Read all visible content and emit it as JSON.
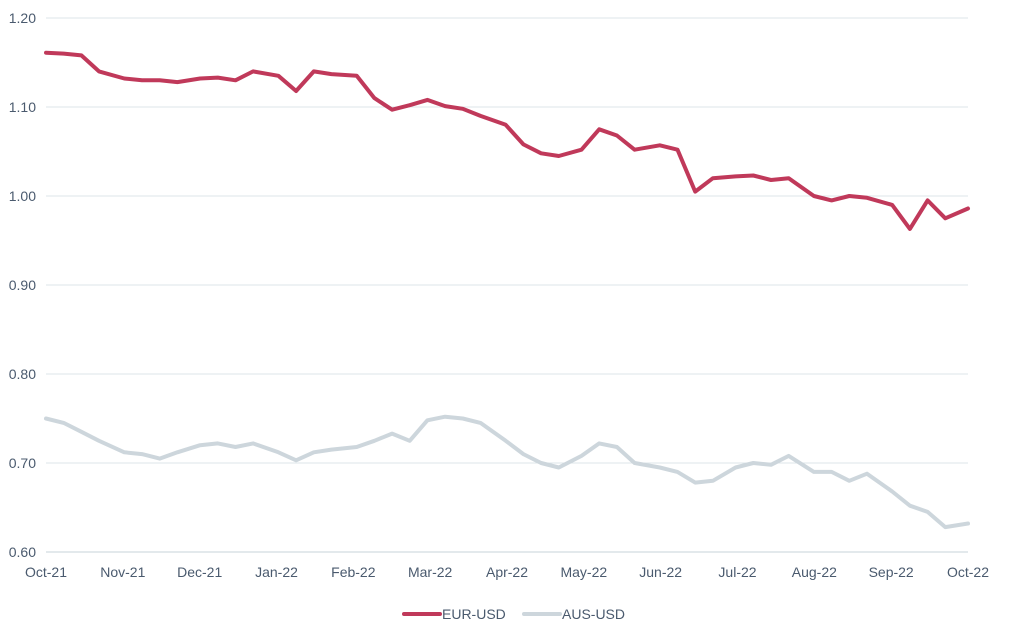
{
  "chart_data": {
    "type": "line",
    "title": "",
    "xlabel": "",
    "ylabel": "",
    "ylim": [
      0.6,
      1.2
    ],
    "grid": "horizontal",
    "legend_position": "bottom-center",
    "x_ticks": [
      "Oct-21",
      "Nov-21",
      "Dec-21",
      "Jan-22",
      "Feb-22",
      "Mar-22",
      "Apr-22",
      "May-22",
      "Jun-22",
      "Jul-22",
      "Aug-22",
      "Sep-22",
      "Oct-22"
    ],
    "y_ticks": [
      "0.60",
      "0.70",
      "0.80",
      "0.90",
      "1.00",
      "1.10",
      "1.20"
    ],
    "x": [
      "2021-10-01",
      "2021-10-08",
      "2021-10-15",
      "2021-10-22",
      "2021-11-01",
      "2021-11-08",
      "2021-11-15",
      "2021-11-22",
      "2021-12-01",
      "2021-12-08",
      "2021-12-15",
      "2021-12-22",
      "2022-01-01",
      "2022-01-08",
      "2022-01-15",
      "2022-01-22",
      "2022-02-01",
      "2022-02-08",
      "2022-02-15",
      "2022-02-22",
      "2022-03-01",
      "2022-03-08",
      "2022-03-15",
      "2022-03-22",
      "2022-04-01",
      "2022-04-08",
      "2022-04-15",
      "2022-04-22",
      "2022-05-01",
      "2022-05-08",
      "2022-05-15",
      "2022-05-22",
      "2022-06-01",
      "2022-06-08",
      "2022-06-15",
      "2022-06-22",
      "2022-07-01",
      "2022-07-08",
      "2022-07-15",
      "2022-07-22",
      "2022-08-01",
      "2022-08-08",
      "2022-08-15",
      "2022-08-22",
      "2022-09-01",
      "2022-09-08",
      "2022-09-15",
      "2022-09-22",
      "2022-10-01"
    ],
    "series": [
      {
        "name": "EUR-USD",
        "color": "#c0395a",
        "values": [
          1.161,
          1.16,
          1.158,
          1.14,
          1.132,
          1.13,
          1.13,
          1.128,
          1.132,
          1.133,
          1.13,
          1.14,
          1.135,
          1.118,
          1.14,
          1.137,
          1.135,
          1.11,
          1.097,
          1.102,
          1.108,
          1.101,
          1.098,
          1.09,
          1.08,
          1.058,
          1.048,
          1.045,
          1.052,
          1.075,
          1.068,
          1.052,
          1.057,
          1.052,
          1.005,
          1.02,
          1.022,
          1.023,
          1.018,
          1.02,
          1.0,
          0.995,
          1.0,
          0.998,
          0.99,
          0.963,
          0.995,
          0.975,
          0.986
        ]
      },
      {
        "name": "AUS-USD",
        "color": "#cdd6dc",
        "values": [
          0.75,
          0.745,
          0.735,
          0.725,
          0.712,
          0.71,
          0.705,
          0.712,
          0.72,
          0.722,
          0.718,
          0.722,
          0.712,
          0.703,
          0.712,
          0.715,
          0.718,
          0.725,
          0.733,
          0.725,
          0.748,
          0.752,
          0.75,
          0.745,
          0.725,
          0.71,
          0.7,
          0.695,
          0.708,
          0.722,
          0.718,
          0.7,
          0.695,
          0.69,
          0.678,
          0.68,
          0.695,
          0.7,
          0.698,
          0.708,
          0.69,
          0.69,
          0.68,
          0.688,
          0.668,
          0.652,
          0.645,
          0.628,
          0.632
        ]
      }
    ]
  }
}
